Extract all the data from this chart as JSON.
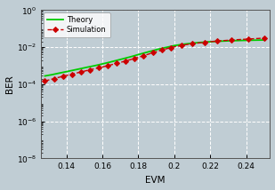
{
  "xlim": [
    0.126,
    0.253
  ],
  "ylim": [
    1e-08,
    1.0
  ],
  "xlabel": "EVM",
  "ylabel": "BER",
  "xticks": [
    0.14,
    0.16,
    0.18,
    0.2,
    0.22,
    0.24
  ],
  "xtick_labels": [
    "0.14",
    "0.16",
    "0.18",
    "0.2",
    "0.22",
    "0.24"
  ],
  "yticks": [
    1e-08,
    1e-06,
    0.0001,
    0.01,
    1.0
  ],
  "ytick_labels": [
    "10^{-8}",
    "10^{-6}",
    "10^{-4}",
    "10^{-2}",
    "10^{0}"
  ],
  "background_color": "#c0cdd4",
  "grid_color": "#ffffff",
  "theory_color": "#00cc00",
  "sim_color": "#cc0000",
  "theory_label": "Theory",
  "sim_label": "Simulation",
  "theory_x": [
    0.128,
    0.132,
    0.136,
    0.14,
    0.144,
    0.148,
    0.152,
    0.156,
    0.16,
    0.164,
    0.168,
    0.172,
    0.176,
    0.18,
    0.184,
    0.188,
    0.192,
    0.196,
    0.2,
    0.205,
    0.21,
    0.215,
    0.22,
    0.225,
    0.23,
    0.235,
    0.24,
    0.245,
    0.25
  ],
  "theory_y": [
    0.00028,
    0.00033,
    0.0004,
    0.00048,
    0.00058,
    0.0007,
    0.00085,
    0.00102,
    0.00125,
    0.00155,
    0.00195,
    0.00245,
    0.0031,
    0.004,
    0.0051,
    0.0065,
    0.0082,
    0.01,
    0.0122,
    0.0145,
    0.0165,
    0.0182,
    0.0197,
    0.021,
    0.022,
    0.0228,
    0.0235,
    0.024,
    0.0245
  ],
  "sim_x": [
    0.128,
    0.133,
    0.138,
    0.143,
    0.148,
    0.153,
    0.158,
    0.163,
    0.168,
    0.173,
    0.178,
    0.183,
    0.188,
    0.193,
    0.198,
    0.204,
    0.21,
    0.217,
    0.224,
    0.232,
    0.241,
    0.25
  ],
  "sim_y": [
    0.00015,
    0.0002,
    0.00027,
    0.00035,
    0.00046,
    0.0006,
    0.00078,
    0.001,
    0.00135,
    0.0018,
    0.0025,
    0.0035,
    0.005,
    0.007,
    0.0095,
    0.0125,
    0.0155,
    0.0185,
    0.0215,
    0.0245,
    0.0275,
    0.031
  ],
  "figsize": [
    3.09,
    2.14
  ],
  "dpi": 100
}
